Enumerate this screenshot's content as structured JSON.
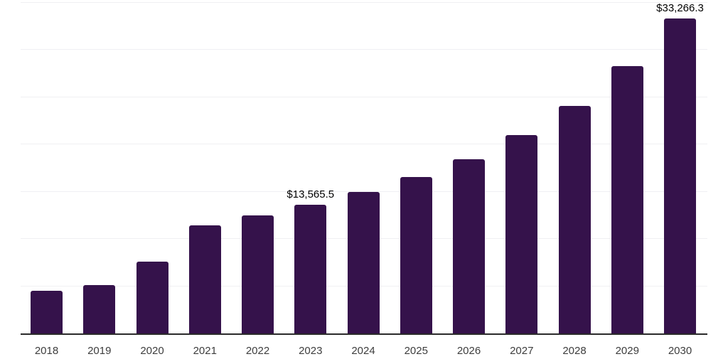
{
  "chart_data": {
    "type": "bar",
    "title": "",
    "xlabel": "",
    "ylabel": "",
    "categories": [
      "2018",
      "2019",
      "2020",
      "2021",
      "2022",
      "2023",
      "2024",
      "2025",
      "2026",
      "2027",
      "2028",
      "2029",
      "2030"
    ],
    "values": [
      4490,
      5090,
      7560,
      11380,
      12500,
      13565.5,
      14910,
      16550,
      18420,
      20980,
      24040,
      28240,
      33266.3
    ],
    "annotations": [
      {
        "category": "2023",
        "text": "$13,565.5"
      },
      {
        "category": "2030",
        "text": "$33,266.3"
      }
    ],
    "ylim": [
      0,
      35000
    ],
    "gridline_step": 5000,
    "grid": "horizontal",
    "legend": "none",
    "colors": {
      "bar": "#35124B",
      "gridline": "#f0f0f3",
      "axis_line": "#2a2a2a",
      "tick_label": "#3d3d3d",
      "value_label": "#000000",
      "background": "#ffffff"
    }
  }
}
